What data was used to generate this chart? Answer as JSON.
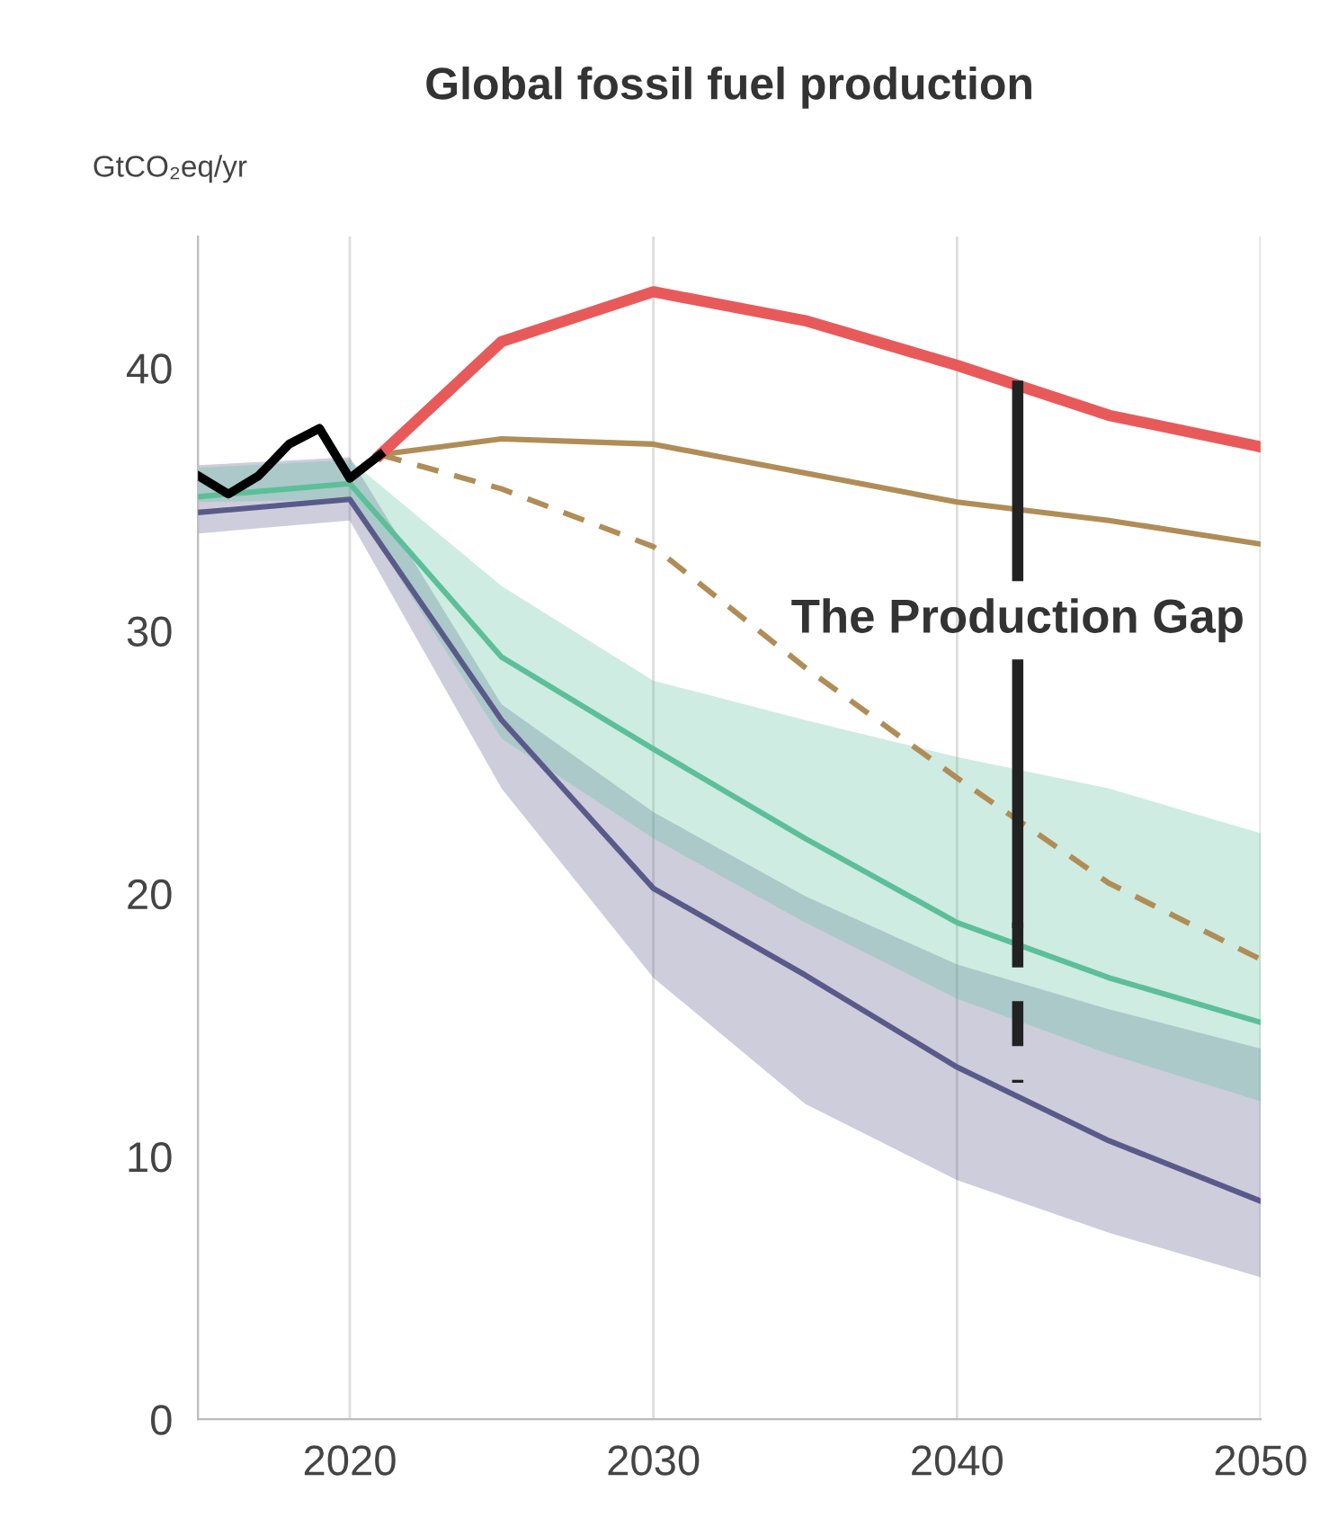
{
  "chart_data": {
    "type": "line",
    "title": "Global fossil fuel production",
    "ylabel": "GtCO₂eq/yr",
    "xlim": [
      2015,
      2050
    ],
    "xticks": [
      2020,
      2030,
      2040,
      2050
    ],
    "ylim": [
      0,
      45
    ],
    "yticks": [
      0,
      10,
      20,
      30,
      40
    ],
    "grid": "x",
    "series": [
      {
        "color": "#5a5a8a",
        "x": [
          2015,
          2020,
          2025,
          2030,
          2035,
          2040,
          2045,
          2050
        ],
        "values": [
          34.5,
          35.0,
          26.6,
          20.2,
          16.9,
          13.4,
          10.6,
          8.3
        ],
        "lower": [
          33.7,
          34.2,
          24.0,
          16.8,
          12.0,
          9.1,
          7.1,
          5.4
        ],
        "upper": [
          36.3,
          36.6,
          27.2,
          23.1,
          19.9,
          17.3,
          15.6,
          14.1
        ]
      },
      {
        "color": "#5cbf9a",
        "x": [
          2015,
          2020,
          2025,
          2030,
          2035,
          2040,
          2045,
          2050
        ],
        "values": [
          35.1,
          35.6,
          29.0,
          25.5,
          22.1,
          18.9,
          16.8,
          15.1
        ],
        "lower": [
          34.9,
          35.0,
          25.9,
          22.1,
          18.9,
          16.0,
          13.9,
          12.1
        ],
        "upper": [
          36.2,
          36.5,
          31.7,
          28.1,
          26.6,
          25.2,
          24.0,
          22.3
        ]
      },
      {
        "color": "#b08d57",
        "line_style": "dashed",
        "x": [
          2021,
          2025,
          2030,
          2035,
          2040,
          2045,
          2050
        ],
        "values": [
          36.7,
          35.4,
          33.2,
          28.6,
          24.4,
          20.4,
          17.5
        ]
      },
      {
        "color": "#b08d57",
        "x": [
          2021,
          2025,
          2030,
          2035,
          2040,
          2045,
          2050
        ],
        "values": [
          36.7,
          37.3,
          37.1,
          36.0,
          34.9,
          34.2,
          33.3
        ]
      },
      {
        "color": "#e85a5a",
        "x": [
          2021,
          2025,
          2030,
          2035,
          2040,
          2045,
          2050
        ],
        "values": [
          36.7,
          41.0,
          42.9,
          41.8,
          40.1,
          38.2,
          37.0
        ]
      },
      {
        "color": "#000000",
        "x": [
          2015,
          2016,
          2017,
          2018,
          2019,
          2020,
          2021
        ],
        "values": [
          35.9,
          35.2,
          35.9,
          37.1,
          37.7,
          35.8,
          36.7
        ]
      },
      {
        "color": "#222222",
        "x": [
          2042,
          2042
        ],
        "values": [
          39.3,
          32.1
        ]
      },
      {
        "color": "#222222",
        "x": [
          2042,
          2042
        ],
        "values": [
          28.7,
          18.9
        ]
      },
      {
        "color": "#222222",
        "line_style": "dashed",
        "x": [
          2042,
          2042
        ],
        "values": [
          18.9,
          12.8
        ]
      }
    ],
    "annotations": [
      "The Production Gap"
    ]
  }
}
